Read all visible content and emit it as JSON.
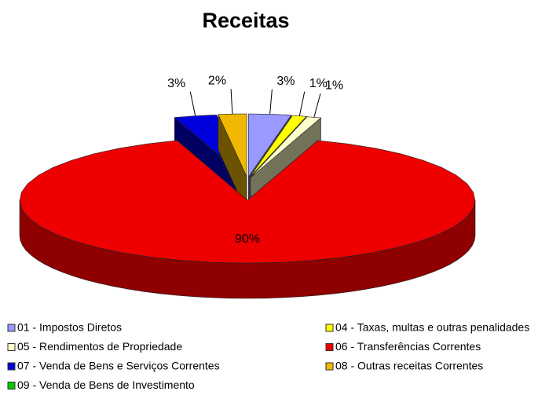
{
  "chart_data": {
    "type": "pie",
    "title": "Receitas",
    "categories": [
      "01 - Impostos Diretos",
      "04 - Taxas, multas e outras penalidades",
      "05 - Rendimentos de Propriedade",
      "06 - Transferências Correntes",
      "07 - Venda de Bens e Serviços Correntes",
      "08 - Outras receitas Correntes",
      "09 - Venda de Bens de Investimento"
    ],
    "values": [
      3,
      1,
      1,
      90,
      3,
      2,
      0
    ],
    "value_labels": [
      "3%",
      "1%",
      "1%",
      "90%",
      "3%",
      "2%",
      null
    ],
    "colors": [
      "#9999ff",
      "#ffff00",
      "#ffffcc",
      "#ee0000",
      "#0000dd",
      "#f0b800",
      "#00cc00"
    ]
  }
}
